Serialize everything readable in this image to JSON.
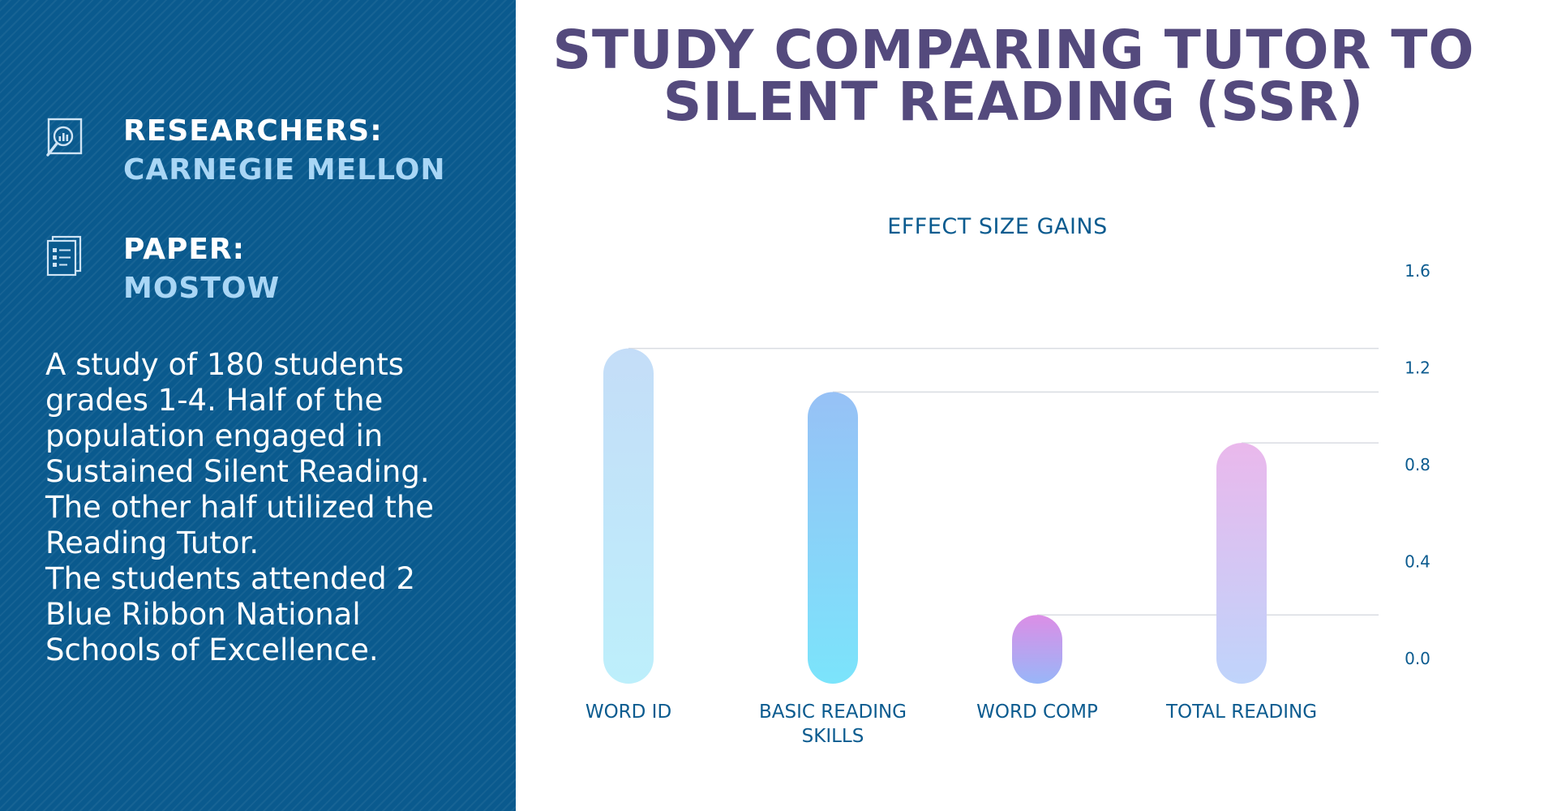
{
  "left_panel": {
    "researchers": {
      "label": "RESEARCHERS:",
      "value": "CARNEGIE MELLON",
      "icon": "research-analytics-icon"
    },
    "paper": {
      "label": "PAPER:",
      "value": "MOSTOW",
      "icon": "document-icon"
    },
    "description": [
      "A study of 180 students grades 1-4. Half of the population engaged in Sustained Silent Reading. The other half utilized the Reading Tutor.",
      "The students attended 2 Blue Ribbon National Schools of Excellence."
    ]
  },
  "page_title": "STUDY COMPARING TUTOR TO SILENT READING (SSR)",
  "chart_data": {
    "type": "bar",
    "title": "EFFECT SIZE GAINS",
    "categories": [
      "WORD ID",
      "BASIC READING SKILLS",
      "WORD COMP",
      "TOTAL READING"
    ],
    "values": [
      1.28,
      1.1,
      0.18,
      0.89
    ],
    "ylim": [
      0,
      1.6
    ],
    "yticks": [
      "0.0",
      "0.4",
      "0.8",
      "1.2",
      "1.6"
    ],
    "y_axis_side": "right",
    "colors": [
      [
        "#c4ddf8",
        "#bdeffb"
      ],
      [
        "#97c1f6",
        "#7be4fb"
      ],
      [
        "#dc8ee6",
        "#98b6f8"
      ],
      [
        "#eab8ec",
        "#bfd4fb"
      ]
    ]
  }
}
